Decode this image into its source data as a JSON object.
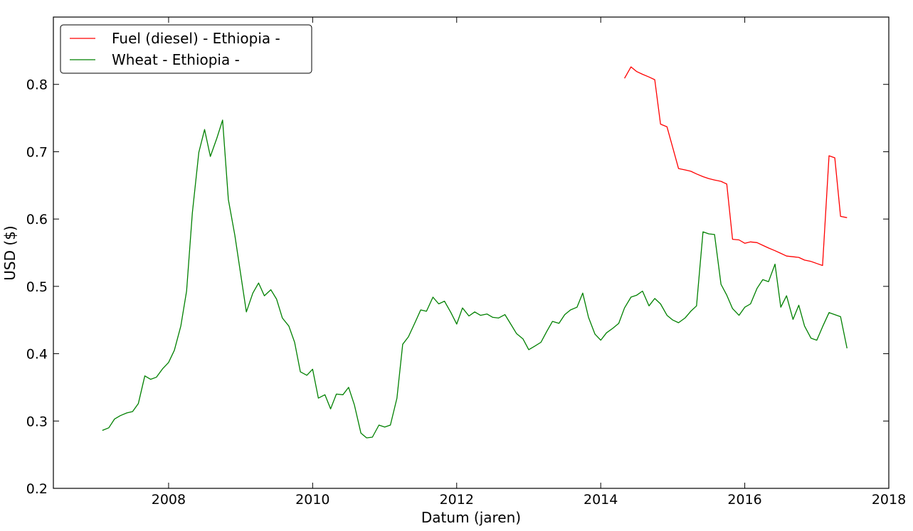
{
  "chart_data": {
    "type": "line",
    "title": "",
    "xlabel": "Datum (jaren)",
    "ylabel": "USD ($)",
    "xlim": [
      2006.4,
      2018.0
    ],
    "ylim": [
      0.2,
      0.9
    ],
    "xticks": [
      2008,
      2010,
      2012,
      2014,
      2016,
      2018
    ],
    "yticks": [
      0.2,
      0.3,
      0.4,
      0.5,
      0.6,
      0.7,
      0.8
    ],
    "ytick_labels": [
      "0.2",
      "0.3",
      "0.4",
      "0.5",
      "0.6",
      "0.7",
      "0.8"
    ],
    "grid": false,
    "legend_position": "top-left",
    "series": [
      {
        "name": "Fuel (diesel) - Ethiopia -",
        "color": "#ff0000",
        "x": [
          2014.33,
          2014.42,
          2014.5,
          2014.58,
          2014.67,
          2014.75,
          2014.83,
          2014.92,
          2015.0,
          2015.08,
          2015.17,
          2015.25,
          2015.33,
          2015.42,
          2015.5,
          2015.58,
          2015.67,
          2015.75,
          2015.83,
          2015.92,
          2016.0,
          2016.08,
          2016.17,
          2016.25,
          2016.33,
          2016.42,
          2016.5,
          2016.58,
          2016.67,
          2016.75,
          2016.83,
          2016.92,
          2017.0,
          2017.08,
          2017.17,
          2017.25,
          2017.33,
          2017.42
        ],
        "y": [
          0.809,
          0.826,
          0.819,
          0.815,
          0.811,
          0.807,
          0.741,
          0.737,
          0.706,
          0.675,
          0.673,
          0.671,
          0.667,
          0.663,
          0.66,
          0.658,
          0.656,
          0.652,
          0.57,
          0.569,
          0.564,
          0.566,
          0.565,
          0.561,
          0.557,
          0.553,
          0.549,
          0.545,
          0.544,
          0.543,
          0.539,
          0.537,
          0.534,
          0.531,
          0.694,
          0.691,
          0.604,
          0.602
        ]
      },
      {
        "name": "Wheat - Ethiopia -",
        "color": "#008000",
        "x": [
          2007.08,
          2007.17,
          2007.25,
          2007.33,
          2007.42,
          2007.5,
          2007.58,
          2007.67,
          2007.75,
          2007.83,
          2007.92,
          2008.0,
          2008.08,
          2008.17,
          2008.25,
          2008.33,
          2008.42,
          2008.5,
          2008.58,
          2008.67,
          2008.75,
          2008.83,
          2008.92,
          2009.0,
          2009.08,
          2009.17,
          2009.25,
          2009.33,
          2009.42,
          2009.5,
          2009.58,
          2009.67,
          2009.75,
          2009.83,
          2009.92,
          2010.0,
          2010.08,
          2010.17,
          2010.25,
          2010.33,
          2010.42,
          2010.5,
          2010.58,
          2010.67,
          2010.75,
          2010.83,
          2010.92,
          2011.0,
          2011.08,
          2011.17,
          2011.25,
          2011.33,
          2011.42,
          2011.5,
          2011.58,
          2011.67,
          2011.75,
          2011.83,
          2011.92,
          2012.0,
          2012.08,
          2012.17,
          2012.25,
          2012.33,
          2012.42,
          2012.5,
          2012.58,
          2012.67,
          2012.75,
          2012.83,
          2012.92,
          2013.0,
          2013.08,
          2013.17,
          2013.25,
          2013.33,
          2013.42,
          2013.5,
          2013.58,
          2013.67,
          2013.75,
          2013.83,
          2013.92,
          2014.0,
          2014.08,
          2014.17,
          2014.25,
          2014.33,
          2014.42,
          2014.5,
          2014.58,
          2014.67,
          2014.75,
          2014.83,
          2014.92,
          2015.0,
          2015.08,
          2015.17,
          2015.25,
          2015.33,
          2015.42,
          2015.5,
          2015.58,
          2015.67,
          2015.75,
          2015.83,
          2015.92,
          2016.0,
          2016.08,
          2016.17,
          2016.25,
          2016.33,
          2016.42,
          2016.5,
          2016.58,
          2016.67,
          2016.75,
          2016.83,
          2016.92,
          2017.0,
          2017.08,
          2017.17,
          2017.25,
          2017.33,
          2017.42
        ],
        "y": [
          0.286,
          0.29,
          0.303,
          0.308,
          0.312,
          0.314,
          0.326,
          0.367,
          0.362,
          0.365,
          0.378,
          0.387,
          0.405,
          0.441,
          0.493,
          0.609,
          0.699,
          0.733,
          0.693,
          0.72,
          0.747,
          0.629,
          0.576,
          0.519,
          0.462,
          0.49,
          0.505,
          0.486,
          0.495,
          0.481,
          0.453,
          0.441,
          0.417,
          0.373,
          0.368,
          0.377,
          0.334,
          0.339,
          0.318,
          0.34,
          0.339,
          0.35,
          0.324,
          0.282,
          0.275,
          0.276,
          0.294,
          0.291,
          0.294,
          0.334,
          0.414,
          0.425,
          0.446,
          0.465,
          0.463,
          0.484,
          0.474,
          0.478,
          0.461,
          0.444,
          0.468,
          0.456,
          0.462,
          0.457,
          0.459,
          0.454,
          0.453,
          0.458,
          0.444,
          0.43,
          0.422,
          0.406,
          0.411,
          0.417,
          0.433,
          0.448,
          0.445,
          0.458,
          0.465,
          0.469,
          0.49,
          0.454,
          0.429,
          0.42,
          0.431,
          0.438,
          0.445,
          0.468,
          0.484,
          0.487,
          0.493,
          0.471,
          0.482,
          0.474,
          0.457,
          0.45,
          0.446,
          0.453,
          0.463,
          0.471,
          0.581,
          0.578,
          0.577,
          0.503,
          0.487,
          0.467,
          0.457,
          0.469,
          0.474,
          0.497,
          0.51,
          0.507,
          0.533,
          0.469,
          0.486,
          0.451,
          0.472,
          0.441,
          0.423,
          0.42,
          0.44,
          0.461,
          0.458,
          0.455,
          0.408
        ]
      }
    ]
  }
}
